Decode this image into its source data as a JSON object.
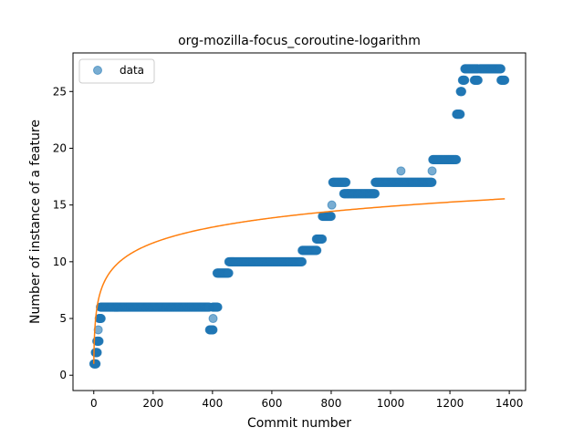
{
  "chart_data": {
    "type": "scatter",
    "title": "org-mozilla-focus_coroutine-logarithm",
    "xlabel": "Commit number",
    "ylabel": "Number of instance of a feature",
    "xlim": [
      -70,
      1455
    ],
    "ylim": [
      -1.35,
      28.4
    ],
    "xticks": [
      0,
      200,
      400,
      600,
      800,
      1000,
      1200,
      1400
    ],
    "yticks": [
      0,
      5,
      10,
      15,
      20,
      25
    ],
    "grid": false,
    "legend": {
      "position": "upper-left",
      "entries": [
        "data"
      ]
    },
    "colors": {
      "data": "#1f77b4",
      "fit": "#ff7f0e"
    },
    "series": [
      {
        "name": "data",
        "kind": "scatter",
        "runs": [
          {
            "x0": 0,
            "x1": 8,
            "y": 1
          },
          {
            "x0": 5,
            "x1": 12,
            "y": 2
          },
          {
            "x0": 10,
            "x1": 18,
            "y": 3
          },
          {
            "x0": 15,
            "x1": 15,
            "y": 4
          },
          {
            "x0": 18,
            "x1": 25,
            "y": 5
          },
          {
            "x0": 22,
            "x1": 390,
            "y": 6
          },
          {
            "x0": 390,
            "x1": 402,
            "y": 4
          },
          {
            "x0": 402,
            "x1": 402,
            "y": 5
          },
          {
            "x0": 400,
            "x1": 418,
            "y": 6
          },
          {
            "x0": 415,
            "x1": 455,
            "y": 9
          },
          {
            "x0": 455,
            "x1": 702,
            "y": 10
          },
          {
            "x0": 702,
            "x1": 752,
            "y": 11
          },
          {
            "x0": 750,
            "x1": 770,
            "y": 12
          },
          {
            "x0": 770,
            "x1": 800,
            "y": 14
          },
          {
            "x0": 802,
            "x1": 802,
            "y": 15
          },
          {
            "x0": 805,
            "x1": 850,
            "y": 17
          },
          {
            "x0": 842,
            "x1": 948,
            "y": 16
          },
          {
            "x0": 948,
            "x1": 1140,
            "y": 17
          },
          {
            "x0": 1035,
            "x1": 1035,
            "y": 18
          },
          {
            "x0": 1140,
            "x1": 1140,
            "y": 18
          },
          {
            "x0": 1142,
            "x1": 1222,
            "y": 19
          },
          {
            "x0": 1222,
            "x1": 1235,
            "y": 23
          },
          {
            "x0": 1235,
            "x1": 1240,
            "y": 25
          },
          {
            "x0": 1242,
            "x1": 1250,
            "y": 26
          },
          {
            "x0": 1250,
            "x1": 1295,
            "y": 27
          },
          {
            "x0": 1282,
            "x1": 1295,
            "y": 26
          },
          {
            "x0": 1300,
            "x1": 1372,
            "y": 27
          },
          {
            "x0": 1372,
            "x1": 1385,
            "y": 26
          }
        ]
      },
      {
        "name": "",
        "kind": "line",
        "model": "log",
        "a": 1.0,
        "b": 2.01,
        "xmin": 0,
        "xmax": 1385
      }
    ]
  }
}
